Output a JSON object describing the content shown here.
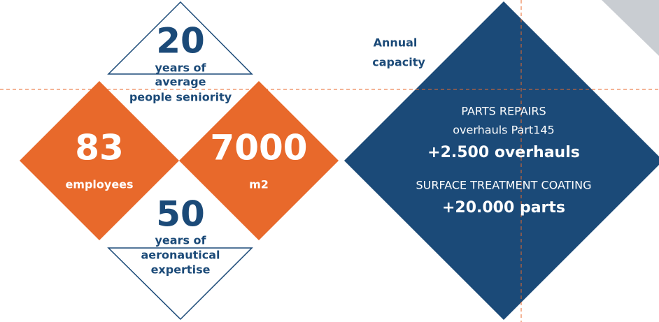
{
  "seniority": {
    "number": "20",
    "lines": [
      "years of",
      "average",
      "people seniority"
    ]
  },
  "employees": {
    "number": "83",
    "label": "employees"
  },
  "area": {
    "number": "7000",
    "label": "m2"
  },
  "expertise": {
    "number": "50",
    "lines": [
      "years of",
      "aeronautical",
      "expertise"
    ]
  },
  "capacity": {
    "title": [
      "Annual",
      "capacity"
    ],
    "items": [
      {
        "heading": [
          "PARTS REPAIRS",
          "overhauls Part145"
        ],
        "value": "+2.500 overhauls"
      },
      {
        "heading": [
          "SURFACE TREATMENT COATING"
        ],
        "value": "+20.000 parts"
      }
    ]
  }
}
